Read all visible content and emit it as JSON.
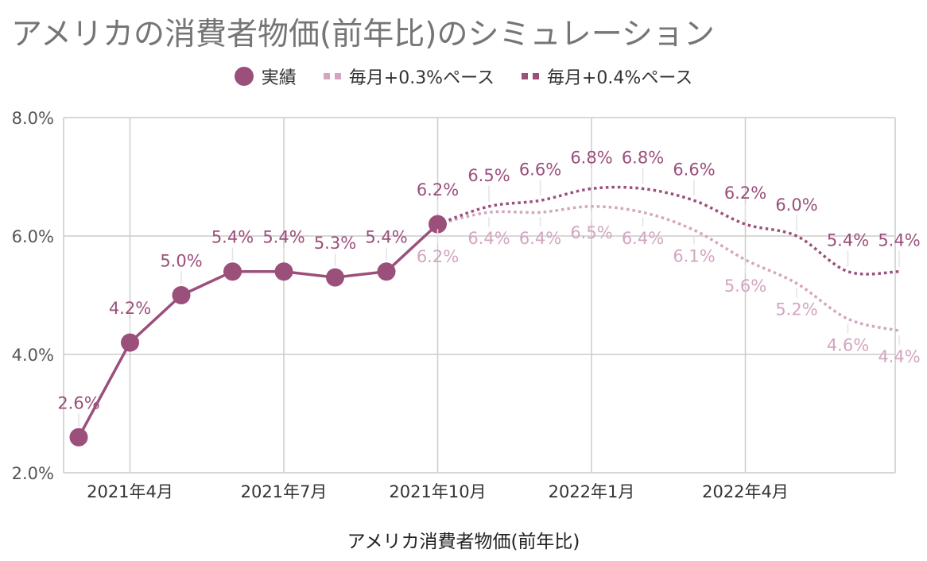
{
  "title": "アメリカの消費者物価(前年比)のシミュレーション",
  "colors": {
    "actual": "#9b4f7b",
    "sim03": "#d3a6c0",
    "sim04": "#9b4f7b",
    "grid": "#cccccc",
    "axis_text": "#555555"
  },
  "chart_data": {
    "type": "line",
    "title": "アメリカの消費者物価(前年比)のシミュレーション",
    "xlabel": "アメリカ消費者物価(前年比)",
    "ylabel": "",
    "ylim": [
      0.02,
      0.08
    ],
    "yticks": [
      "2.0%",
      "4.0%",
      "6.0%",
      "8.0%"
    ],
    "yticks_values": [
      0.02,
      0.04,
      0.06,
      0.08
    ],
    "x": [
      "2021-03",
      "2021-04",
      "2021-05",
      "2021-06",
      "2021-07",
      "2021-08",
      "2021-09",
      "2021-10",
      "2021-11",
      "2021-12",
      "2022-01",
      "2022-02",
      "2022-03",
      "2022-04",
      "2022-05",
      "2022-06",
      "2022-07"
    ],
    "xticks": [
      {
        "x": "2021-04",
        "label": "2021年4月"
      },
      {
        "x": "2021-07",
        "label": "2021年7月"
      },
      {
        "x": "2021-10",
        "label": "2021年10月"
      },
      {
        "x": "2022-01",
        "label": "2022年1月"
      },
      {
        "x": "2022-04",
        "label": "2022年4月"
      }
    ],
    "legend_position": "top",
    "grid": true,
    "series": [
      {
        "name": "実績",
        "style": "solid-markers",
        "x": [
          "2021-03",
          "2021-04",
          "2021-05",
          "2021-06",
          "2021-07",
          "2021-08",
          "2021-09",
          "2021-10"
        ],
        "values": [
          0.026,
          0.042,
          0.05,
          0.054,
          0.054,
          0.053,
          0.054,
          0.062
        ],
        "labels": [
          "2.6%",
          "4.2%",
          "5.0%",
          "5.4%",
          "5.4%",
          "5.3%",
          "5.4%",
          "6.2%"
        ]
      },
      {
        "name": "毎月+0.3%ペース",
        "style": "dotted",
        "x": [
          "2021-10",
          "2021-11",
          "2021-12",
          "2022-01",
          "2022-02",
          "2022-03",
          "2022-04",
          "2022-05",
          "2022-06",
          "2022-07"
        ],
        "values": [
          0.062,
          0.064,
          0.064,
          0.065,
          0.064,
          0.061,
          0.056,
          0.052,
          0.046,
          0.044
        ],
        "labels": [
          "6.2%",
          "6.4%",
          "6.4%",
          "6.5%",
          "6.4%",
          "6.1%",
          "5.6%",
          "5.2%",
          "4.6%",
          "4.4%"
        ]
      },
      {
        "name": "毎月+0.4%ペース",
        "style": "dotted",
        "x": [
          "2021-10",
          "2021-11",
          "2021-12",
          "2022-01",
          "2022-02",
          "2022-03",
          "2022-04",
          "2022-05",
          "2022-06",
          "2022-07"
        ],
        "values": [
          0.062,
          0.065,
          0.066,
          0.068,
          0.068,
          0.066,
          0.062,
          0.06,
          0.054,
          0.054
        ],
        "labels": [
          "",
          "6.5%",
          "6.6%",
          "6.8%",
          "6.8%",
          "6.6%",
          "6.2%",
          "6.0%",
          "5.4%",
          "5.4%"
        ]
      }
    ]
  }
}
